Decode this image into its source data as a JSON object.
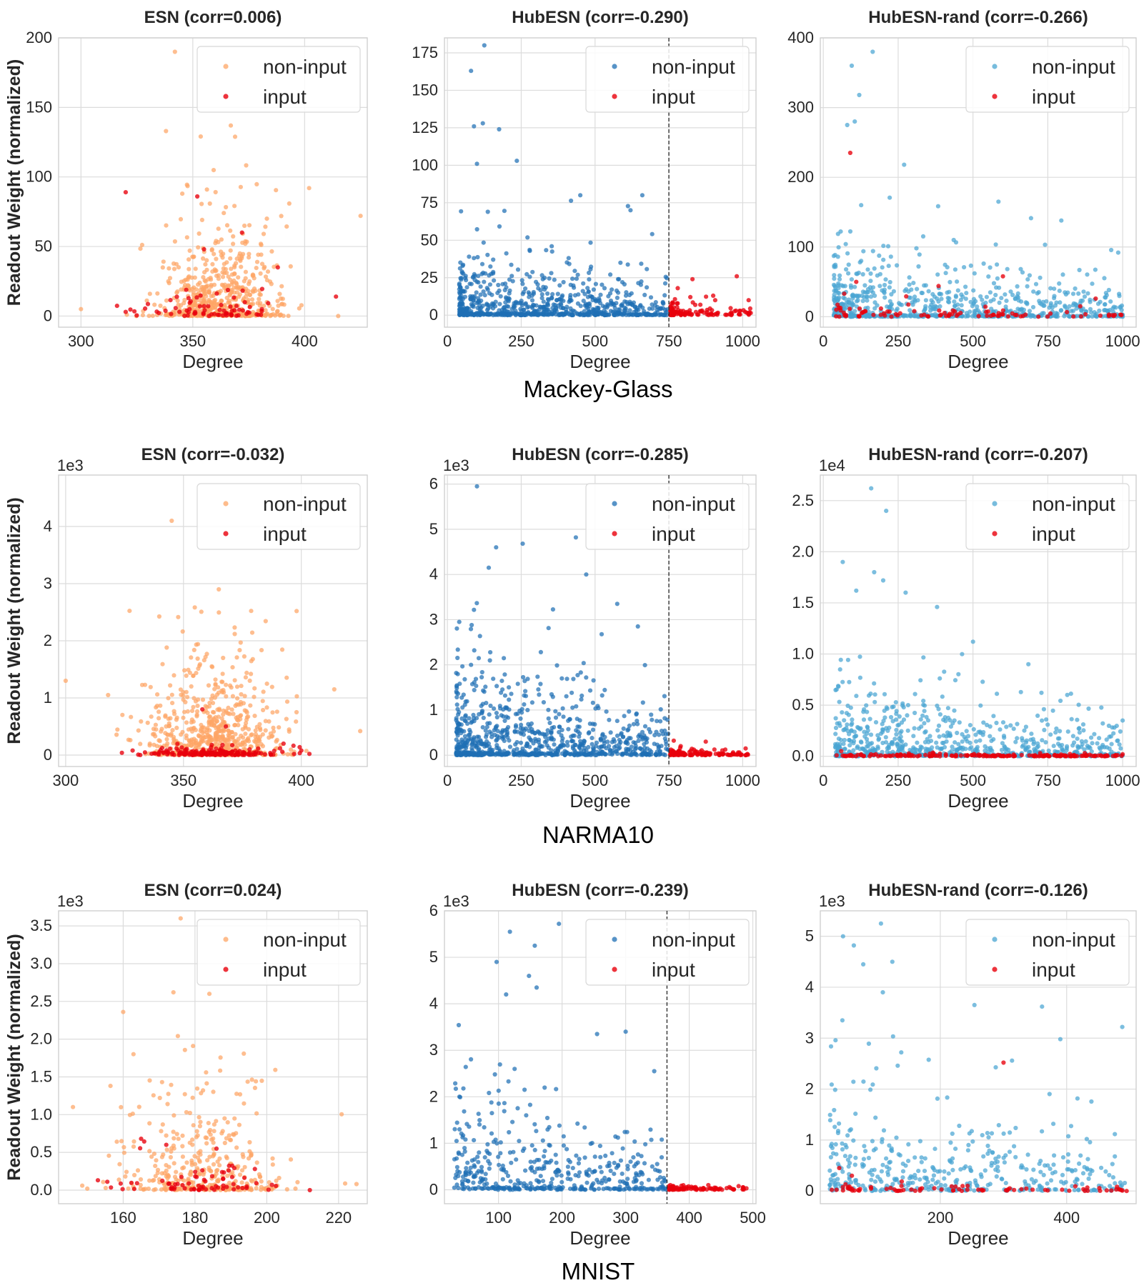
{
  "colors": {
    "esn_noninput": "#fda565",
    "hub_noninput": "#1f6fb4",
    "rand_noninput": "#4aa5d2",
    "input": "#e8000b",
    "guide_line": "#333333"
  },
  "chart_data": [
    {
      "type": "scatter",
      "row": 0,
      "col": 0,
      "title": "ESN (corr=0.006)",
      "xlabel": "Degree",
      "ylabel": "Readout Weight (normalized)",
      "xlim": [
        290,
        428
      ],
      "ylim": [
        -8,
        200
      ],
      "xticks": [
        300,
        350,
        400
      ],
      "yticks": [
        0,
        50,
        100,
        150,
        200
      ],
      "tick_labels_y": [
        "0",
        "50",
        "100",
        "150",
        "200"
      ],
      "multiplier": "",
      "legend": [
        "non-input",
        "input"
      ],
      "legend_position": "top-right",
      "color_key": "esn_noninput",
      "noninput_dist": {
        "n": 620,
        "x_center": 362,
        "x_spread": 14,
        "y_scale": 22,
        "y_max": 140,
        "y_zero_frac": 0.25
      },
      "input_dist": {
        "n": 75,
        "x_center": 360,
        "x_spread": 16,
        "y_scale": 6,
        "y_max": 20
      },
      "noninput_outliers": [
        [
          342,
          190
        ],
        [
          300,
          5
        ],
        [
          425,
          72
        ],
        [
          415,
          0
        ],
        [
          402,
          92
        ],
        [
          367,
          137
        ],
        [
          338,
          133
        ]
      ],
      "input_outliers": [
        [
          320,
          89
        ],
        [
          352,
          86
        ],
        [
          372,
          60
        ],
        [
          388,
          35
        ],
        [
          414,
          14
        ],
        [
          320,
          3
        ],
        [
          355,
          48
        ]
      ]
    },
    {
      "type": "scatter",
      "row": 0,
      "col": 1,
      "title": "HubESN (corr=-0.290)",
      "xlabel": "Degree",
      "ylabel": "",
      "xlim": [
        -10,
        1045
      ],
      "ylim": [
        -8,
        185
      ],
      "xticks": [
        0,
        250,
        500,
        750,
        1000
      ],
      "yticks": [
        0,
        25,
        50,
        75,
        100,
        125,
        150,
        175
      ],
      "tick_labels_y": [
        "0",
        "25",
        "50",
        "75",
        "100",
        "125",
        "150",
        "175"
      ],
      "multiplier": "",
      "guide_x": 750,
      "legend": [
        "non-input",
        "input"
      ],
      "legend_position": "top-right",
      "color_key": "hub_noninput",
      "noninput_dist": {
        "n": 780,
        "x_min": 40,
        "x_max": 750,
        "x_skew": 1.6,
        "y_scale": 16,
        "y_max": 105,
        "y_zero_frac": 0.3
      },
      "input_dist": {
        "n": 120,
        "x_min": 755,
        "x_max": 1030,
        "x_skew": 1.8,
        "y_scale": 3,
        "y_max": 25
      },
      "noninput_outliers": [
        [
          125,
          180
        ],
        [
          80,
          163
        ],
        [
          90,
          126
        ],
        [
          120,
          128
        ],
        [
          175,
          124
        ],
        [
          100,
          101
        ],
        [
          235,
          103
        ],
        [
          660,
          80
        ],
        [
          450,
          80
        ],
        [
          620,
          70
        ]
      ],
      "input_outliers": [
        [
          980,
          26
        ],
        [
          830,
          24
        ],
        [
          900,
          13
        ],
        [
          1020,
          10
        ],
        [
          780,
          18
        ]
      ]
    },
    {
      "type": "scatter",
      "row": 0,
      "col": 2,
      "title": "HubESN-rand (corr=-0.266)",
      "xlabel": "Degree",
      "ylabel": "",
      "xlim": [
        -10,
        1045
      ],
      "ylim": [
        -15,
        400
      ],
      "xticks": [
        0,
        250,
        500,
        750,
        1000
      ],
      "yticks": [
        0,
        100,
        200,
        300,
        400
      ],
      "tick_labels_y": [
        "0",
        "100",
        "200",
        "300",
        "400"
      ],
      "multiplier": "",
      "legend": [
        "non-input",
        "input"
      ],
      "legend_position": "top-right",
      "color_key": "rand_noninput",
      "noninput_dist": {
        "n": 720,
        "x_min": 35,
        "x_max": 1000,
        "x_skew": 1.5,
        "y_scale": 35,
        "y_max": 210,
        "y_zero_frac": 0.22
      },
      "input_dist": {
        "n": 90,
        "x_min": 40,
        "x_max": 1000,
        "x_skew": 1.3,
        "y_scale": 6,
        "y_max": 50
      },
      "noninput_outliers": [
        [
          165,
          380
        ],
        [
          95,
          360
        ],
        [
          120,
          318
        ],
        [
          80,
          275
        ],
        [
          105,
          280
        ],
        [
          270,
          218
        ],
        [
          585,
          165
        ],
        [
          795,
          138
        ],
        [
          985,
          92
        ],
        [
          1000,
          0
        ]
      ],
      "input_outliers": [
        [
          90,
          235
        ],
        [
          600,
          58
        ],
        [
          385,
          44
        ],
        [
          110,
          50
        ],
        [
          70,
          33
        ],
        [
          910,
          26
        ]
      ]
    },
    {
      "type": "scatter",
      "row": 1,
      "col": 0,
      "title": "ESN (corr=-0.032)",
      "xlabel": "Degree",
      "ylabel": "Readout Weight (normalized)",
      "xlim": [
        297,
        428
      ],
      "ylim": [
        -0.2,
        4.9
      ],
      "xticks": [
        300,
        350,
        400
      ],
      "yticks": [
        0,
        1,
        2,
        3,
        4
      ],
      "tick_labels_y": [
        "0",
        "1",
        "2",
        "3",
        "4"
      ],
      "multiplier": "1e3",
      "legend": [
        "non-input",
        "input"
      ],
      "legend_position": "top-right",
      "color_key": "esn_noninput",
      "noninput_dist": {
        "n": 700,
        "x_center": 363,
        "x_spread": 14,
        "y_scale": 0.6,
        "y_max": 2.6,
        "y_zero_frac": 0.2
      },
      "input_dist": {
        "n": 170,
        "x_center": 362,
        "x_spread": 15,
        "y_scale": 0.04,
        "y_max": 0.3
      },
      "noninput_outliers": [
        [
          300,
          1.3
        ],
        [
          345,
          4.1
        ],
        [
          425,
          0.42
        ],
        [
          414,
          1.15
        ],
        [
          398,
          2.52
        ],
        [
          365,
          2.9
        ],
        [
          318,
          1.05
        ]
      ],
      "input_outliers": [
        [
          358,
          0.8
        ],
        [
          368,
          0.5
        ],
        [
          400,
          0.08
        ]
      ]
    },
    {
      "type": "scatter",
      "row": 1,
      "col": 1,
      "title": "HubESN (corr=-0.285)",
      "xlabel": "Degree",
      "ylabel": "",
      "xlim": [
        -10,
        1045
      ],
      "ylim": [
        -0.25,
        6.2
      ],
      "xticks": [
        0,
        250,
        500,
        750,
        1000
      ],
      "yticks": [
        0,
        1,
        2,
        3,
        4,
        5,
        6
      ],
      "tick_labels_y": [
        "0",
        "1",
        "2",
        "3",
        "4",
        "5",
        "6"
      ],
      "multiplier": "1e3",
      "guide_x": 750,
      "legend": [
        "non-input",
        "input"
      ],
      "legend_position": "top-right",
      "color_key": "hub_noninput",
      "noninput_dist": {
        "n": 850,
        "x_min": 30,
        "x_max": 750,
        "x_skew": 1.5,
        "y_scale": 0.75,
        "y_max": 3.5,
        "y_zero_frac": 0.28
      },
      "input_dist": {
        "n": 130,
        "x_min": 755,
        "x_max": 1020,
        "x_skew": 1.8,
        "y_scale": 0.05,
        "y_max": 0.35
      },
      "noninput_outliers": [
        [
          100,
          5.95
        ],
        [
          435,
          4.82
        ],
        [
          165,
          4.6
        ],
        [
          255,
          4.68
        ],
        [
          140,
          4.15
        ],
        [
          470,
          4.0
        ],
        [
          575,
          3.35
        ],
        [
          40,
          2.95
        ],
        [
          645,
          2.85
        ]
      ],
      "input_outliers": [
        [
          875,
          0.3
        ],
        [
          1010,
          0.15
        ],
        [
          790,
          0.2
        ]
      ]
    },
    {
      "type": "scatter",
      "row": 1,
      "col": 2,
      "title": "HubESN-rand (corr=-0.207)",
      "xlabel": "Degree",
      "ylabel": "",
      "xlim": [
        -10,
        1045
      ],
      "ylim": [
        -0.1,
        2.75
      ],
      "xticks": [
        0,
        250,
        500,
        750,
        1000
      ],
      "yticks": [
        0.0,
        0.5,
        1.0,
        1.5,
        2.0,
        2.5
      ],
      "tick_labels_y": [
        "0.0",
        "0.5",
        "1.0",
        "1.5",
        "2.0",
        "2.5"
      ],
      "multiplier": "1e4",
      "legend": [
        "non-input",
        "input"
      ],
      "legend_position": "top-right",
      "color_key": "rand_noninput",
      "noninput_dist": {
        "n": 760,
        "x_min": 40,
        "x_max": 1000,
        "x_skew": 1.4,
        "y_scale": 0.25,
        "y_max": 1.15,
        "y_zero_frac": 0.2
      },
      "input_dist": {
        "n": 180,
        "x_min": 40,
        "x_max": 1000,
        "x_skew": 1.1,
        "y_scale": 0.01,
        "y_max": 0.06
      },
      "noninput_outliers": [
        [
          160,
          2.62
        ],
        [
          210,
          2.4
        ],
        [
          65,
          1.9
        ],
        [
          170,
          1.8
        ],
        [
          200,
          1.72
        ],
        [
          110,
          1.62
        ],
        [
          275,
          1.6
        ],
        [
          380,
          1.46
        ],
        [
          500,
          1.12
        ],
        [
          685,
          0.9
        ],
        [
          815,
          0.6
        ],
        [
          1000,
          0.35
        ]
      ],
      "input_outliers": [
        [
          60,
          0.05
        ],
        [
          1000,
          0.02
        ]
      ]
    },
    {
      "type": "scatter",
      "row": 2,
      "col": 0,
      "title": "ESN (corr=0.024)",
      "xlabel": "Degree",
      "ylabel": "Readout Weight (normalized)",
      "xlim": [
        142,
        228
      ],
      "ylim": [
        -0.18,
        3.7
      ],
      "xticks": [
        160,
        180,
        200,
        220
      ],
      "yticks": [
        0.0,
        0.5,
        1.0,
        1.5,
        2.0,
        2.5,
        3.0,
        3.5
      ],
      "tick_labels_y": [
        "0.0",
        "0.5",
        "1.0",
        "1.5",
        "2.0",
        "2.5",
        "3.0",
        "3.5"
      ],
      "multiplier": "1e3",
      "legend": [
        "non-input",
        "input"
      ],
      "legend_position": "top-right",
      "color_key": "esn_noninput",
      "noninput_dist": {
        "n": 380,
        "x_center": 182,
        "x_spread": 11,
        "y_scale": 0.45,
        "y_max": 2.2,
        "y_zero_frac": 0.2
      },
      "input_dist": {
        "n": 70,
        "x_center": 182,
        "x_spread": 12,
        "y_scale": 0.1,
        "y_max": 0.7
      },
      "noninput_outliers": [
        [
          176,
          3.6
        ],
        [
          146,
          1.1
        ],
        [
          225,
          0.08
        ],
        [
          160,
          2.36
        ],
        [
          184,
          2.6
        ],
        [
          174,
          2.62
        ],
        [
          150,
          0.02
        ],
        [
          208,
          0.02
        ]
      ],
      "input_outliers": [
        [
          165,
          0.68
        ],
        [
          212,
          0.0
        ],
        [
          186,
          0.55
        ],
        [
          172,
          0.6
        ]
      ]
    },
    {
      "type": "scatter",
      "row": 2,
      "col": 1,
      "title": "HubESN (corr=-0.239)",
      "xlabel": "Degree",
      "ylabel": "",
      "xlim": [
        15,
        505
      ],
      "ylim": [
        -0.3,
        6.0
      ],
      "xticks": [
        100,
        200,
        300,
        400,
        500
      ],
      "yticks": [
        0,
        1,
        2,
        3,
        4,
        5,
        6
      ],
      "tick_labels_y": [
        "0",
        "1",
        "2",
        "3",
        "4",
        "5",
        "6"
      ],
      "multiplier": "1e3",
      "guide_x": 365,
      "legend": [
        "non-input",
        "input"
      ],
      "legend_position": "top-right",
      "color_key": "hub_noninput",
      "noninput_dist": {
        "n": 440,
        "x_min": 30,
        "x_max": 365,
        "x_skew": 1.3,
        "y_scale": 0.8,
        "y_max": 3.6,
        "y_zero_frac": 0.2
      },
      "input_dist": {
        "n": 80,
        "x_min": 368,
        "x_max": 490,
        "x_skew": 1.6,
        "y_scale": 0.04,
        "y_max": 0.12
      },
      "noninput_outliers": [
        [
          195,
          5.72
        ],
        [
          118,
          5.55
        ],
        [
          157,
          5.25
        ],
        [
          97,
          4.9
        ],
        [
          148,
          4.6
        ],
        [
          160,
          4.35
        ],
        [
          112,
          4.2
        ],
        [
          255,
          3.35
        ],
        [
          300,
          3.4
        ],
        [
          345,
          2.55
        ]
      ],
      "input_outliers": [
        [
          430,
          0.1
        ],
        [
          485,
          0.05
        ],
        [
          375,
          0.08
        ]
      ]
    },
    {
      "type": "scatter",
      "row": 2,
      "col": 2,
      "title": "HubESN-rand (corr=-0.126)",
      "xlabel": "Degree",
      "ylabel": "",
      "xlim": [
        10,
        510
      ],
      "ylim": [
        -0.25,
        5.5
      ],
      "xticks": [
        200,
        400
      ],
      "yticks": [
        0,
        1,
        2,
        3,
        4,
        5
      ],
      "tick_labels_y": [
        "0",
        "1",
        "2",
        "3",
        "4",
        "5"
      ],
      "multiplier": "1e3",
      "legend": [
        "non-input",
        "input"
      ],
      "legend_position": "top-right",
      "color_key": "rand_noninput",
      "noninput_dist": {
        "n": 420,
        "x_min": 25,
        "x_max": 495,
        "x_skew": 1.4,
        "y_scale": 0.7,
        "y_max": 3.3,
        "y_zero_frac": 0.15
      },
      "input_dist": {
        "n": 75,
        "x_min": 25,
        "x_max": 495,
        "x_skew": 1.2,
        "y_scale": 0.04,
        "y_max": 0.2
      },
      "noninput_outliers": [
        [
          106,
          5.25
        ],
        [
          46,
          5.0
        ],
        [
          63,
          4.82
        ],
        [
          78,
          4.45
        ],
        [
          124,
          4.5
        ],
        [
          109,
          3.9
        ],
        [
          254,
          3.65
        ],
        [
          361,
          3.62
        ],
        [
          488,
          3.22
        ],
        [
          390,
          2.98
        ],
        [
          45,
          3.35
        ],
        [
          25,
          0.4
        ]
      ],
      "input_outliers": [
        [
          300,
          2.52
        ],
        [
          40,
          0.45
        ],
        [
          60,
          0.3
        ],
        [
          495,
          0.0
        ]
      ]
    }
  ],
  "row_titles": [
    "Mackey-Glass",
    "NARMA10",
    "MNIST"
  ]
}
